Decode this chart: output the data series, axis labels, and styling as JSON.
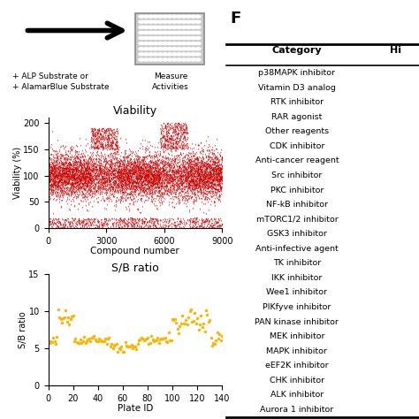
{
  "arrow_text": "+ ALP Substrate or\n+ AlamarBlue Substrate",
  "measure_text": "Measure\nActivities",
  "viability_title": "Viability",
  "viability_xlabel": "Compound number",
  "viability_ylabel": "Viability (%)",
  "viability_xlim": [
    0,
    9000
  ],
  "viability_ylim": [
    0,
    210
  ],
  "viability_xticks": [
    0,
    3000,
    6000,
    9000
  ],
  "viability_yticks": [
    0,
    50,
    100,
    150,
    200
  ],
  "viability_color": "#CC0000",
  "sb_title": "S/B ratio",
  "sb_xlabel": "Plate ID",
  "sb_ylabel": "S/B ratio",
  "sb_xlim": [
    0,
    140
  ],
  "sb_ylim": [
    0,
    15
  ],
  "sb_xticks": [
    0,
    20,
    40,
    60,
    80,
    100,
    120,
    140
  ],
  "sb_yticks": [
    0,
    5,
    10,
    15
  ],
  "sb_color": "#FFB300",
  "F_label": "F",
  "categories": [
    "p38MAPK inhibitor",
    "Vitamin D3 analog",
    "RTK inhibitor",
    "RAR agonist",
    "Other reagents",
    "CDK inhibitor",
    "Anti-cancer reagent",
    "Src inhibitor",
    "PKC inhibitor",
    "NF-kB inhibitor",
    "mTORC1/2 inhibitor",
    "GSK3 inhibitor",
    "Anti-infective agent",
    "TK inhibitor",
    "IKK inhibitor",
    "Wee1 inhibitor",
    "PIKfyve inhibitor",
    "PAN kinase inhibitor",
    "MEK inhibitor",
    "MAPK inhibitor",
    "eEF2K inhibitor",
    "CHK inhibitor",
    "ALK inhibitor",
    "Aurora 1 inhibitor"
  ],
  "col_header_category": "Category",
  "col_header_hits": "Hi",
  "background_color": "#ffffff"
}
